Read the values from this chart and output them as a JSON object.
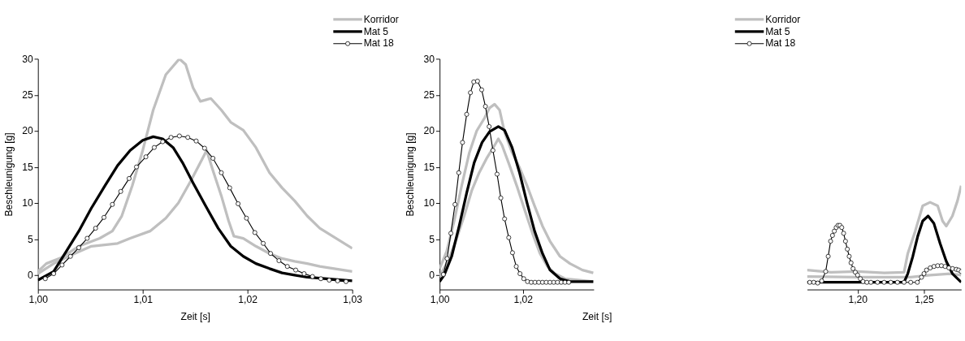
{
  "chart_data": [
    {
      "type": "line",
      "xlabel": "Zeit [s]",
      "ylabel": "Beschleunigung [g]",
      "xlim": [
        1.0,
        1.03
      ],
      "ylim": [
        -2,
        30
      ],
      "xticks": [
        {
          "value": 1.0,
          "label": "1,00"
        },
        {
          "value": 1.01,
          "label": "1,01"
        },
        {
          "value": 1.02,
          "label": "1,02"
        },
        {
          "value": 1.03,
          "label": "1,03"
        }
      ],
      "yticks": [
        0,
        5,
        10,
        15,
        20,
        25,
        30
      ],
      "grid": false,
      "legend": "top right",
      "series": [
        {
          "name": "Korridor",
          "color": "#bfbfbf",
          "x": [
            1.0,
            1.0008,
            1.0022,
            1.0039,
            1.0059,
            1.0071,
            1.008,
            1.009,
            1.01,
            1.011,
            1.0122,
            1.0135,
            1.0141,
            1.0148,
            1.0155,
            1.0165,
            1.0175,
            1.0184,
            1.0196,
            1.0208,
            1.0221,
            1.0233,
            1.0245,
            1.0257,
            1.0269,
            1.03
          ],
          "values": [
            0.5,
            1.6,
            2.4,
            4.0,
            5.1,
            6.1,
            8.2,
            12.4,
            17.3,
            22.9,
            27.8,
            30,
            29.2,
            26,
            24.1,
            24.5,
            22.9,
            21.2,
            20.1,
            17.7,
            14.2,
            12.1,
            10.3,
            8.2,
            6.5,
            3.7
          ]
        },
        {
          "color": "#bfbfbf",
          "x": [
            1.0,
            1.0015,
            1.0035,
            1.0051,
            1.0076,
            1.0088,
            1.0107,
            1.0122,
            1.0134,
            1.0146,
            1.0155,
            1.0161,
            1.0167,
            1.0175,
            1.0182,
            1.0187,
            1.0196,
            1.0208,
            1.0221,
            1.0233,
            1.0245,
            1.0257,
            1.0269,
            1.03
          ],
          "values": [
            0.2,
            1.6,
            3.0,
            4.0,
            4.4,
            5.1,
            6.1,
            7.9,
            10,
            13.1,
            15.6,
            17.3,
            14.5,
            11,
            7.5,
            5.4,
            5.1,
            4.0,
            3.0,
            2.3,
            1.9,
            1.6,
            1.2,
            0.5
          ]
        },
        {
          "name": "Mat 5",
          "color": "#000000",
          "x": [
            1.0,
            1.0015,
            1.0027,
            1.0039,
            1.0051,
            1.0064,
            1.0076,
            1.0088,
            1.01,
            1.011,
            1.0119,
            1.0129,
            1.0138,
            1.0148,
            1.016,
            1.0172,
            1.0184,
            1.0196,
            1.0208,
            1.0221,
            1.0233,
            1.0245,
            1.0257,
            1.03
          ],
          "values": [
            -0.7,
            0.5,
            3.3,
            6.1,
            9.3,
            12.4,
            15.2,
            17.3,
            18.7,
            19.2,
            18.9,
            17.7,
            15.6,
            12.8,
            9.6,
            6.5,
            4.0,
            2.6,
            1.6,
            0.9,
            0.3,
            0,
            -0.3,
            -0.8
          ]
        },
        {
          "name": "Mat 18",
          "color": "#000000",
          "marker": "circle",
          "x": [
            1.0007,
            1.0015,
            1.0023,
            1.0031,
            1.0039,
            1.0047,
            1.0055,
            1.0063,
            1.0071,
            1.0079,
            1.0087,
            1.0094,
            1.0103,
            1.0111,
            1.0119,
            1.0127,
            1.0135,
            1.0143,
            1.0151,
            1.0159,
            1.0167,
            1.0175,
            1.0183,
            1.0191,
            1.0199,
            1.0207,
            1.0215,
            1.0222,
            1.023,
            1.0238,
            1.0246,
            1.0254,
            1.0262,
            1.027,
            1.0278,
            1.0286,
            1.0294
          ],
          "values": [
            -0.5,
            0.2,
            1.4,
            2.6,
            3.8,
            5.1,
            6.5,
            8.0,
            9.8,
            11.6,
            13.4,
            15.0,
            16.4,
            17.7,
            18.5,
            19.1,
            19.3,
            19.1,
            18.6,
            17.6,
            16.2,
            14.2,
            12.1,
            9.9,
            7.9,
            5.9,
            4.4,
            3.0,
            2.0,
            1.2,
            0.7,
            0.2,
            -0.2,
            -0.5,
            -0.7,
            -0.8,
            -0.9
          ]
        }
      ]
    },
    {
      "type": "line",
      "xlabel": "Zeit [s]",
      "ylabel": "Beschleunigung [g]",
      "xlim": [
        1.0,
        1.037
      ],
      "ylim": [
        -2,
        30
      ],
      "xticks": [
        {
          "value": 1.0,
          "label": "1,00"
        },
        {
          "value": 1.02,
          "label": "1,02"
        }
      ],
      "yticks": [
        0,
        5,
        10,
        15,
        20,
        25,
        30
      ],
      "grid": false,
      "legend": "top right",
      "series": [
        {
          "name": "Korridor",
          "color": "#bfbfbf",
          "x": [
            1.0,
            1.0017,
            1.0035,
            1.0053,
            1.0071,
            1.0089,
            1.0108,
            1.012,
            1.0132,
            1.0144,
            1.0156,
            1.0174,
            1.0192,
            1.021,
            1.0228,
            1.0247,
            1.0265,
            1.0289,
            1.0313,
            1.0343,
            1.0369
          ],
          "values": [
            0.9,
            3.3,
            7.5,
            12.4,
            16.9,
            20.0,
            21.8,
            23.2,
            23.7,
            22.9,
            19.8,
            17.0,
            14.9,
            12.4,
            9.6,
            6.8,
            4.7,
            2.6,
            1.6,
            0.7,
            0.3
          ]
        },
        {
          "color": "#bfbfbf",
          "x": [
            1.0,
            1.0023,
            1.0041,
            1.0059,
            1.0077,
            1.0095,
            1.0114,
            1.0132,
            1.0141,
            1.015,
            1.0168,
            1.0187,
            1.0205,
            1.0223,
            1.0241,
            1.0259,
            1.0277,
            1.0301,
            1.0337,
            1.0369
          ],
          "values": [
            -0.2,
            2.3,
            5.1,
            8.2,
            11.7,
            14.2,
            16.3,
            18.0,
            18.9,
            18.0,
            15.2,
            12.1,
            8.9,
            5.8,
            3.0,
            1.2,
            0.2,
            -0.5,
            -0.7,
            -0.9
          ]
        },
        {
          "name": "Mat 5",
          "color": "#000000",
          "x": [
            1.0,
            1.0011,
            1.0029,
            1.0047,
            1.0065,
            1.0083,
            1.0102,
            1.012,
            1.0141,
            1.0156,
            1.0174,
            1.0192,
            1.021,
            1.0228,
            1.0247,
            1.0265,
            1.0289,
            1.0313,
            1.0369
          ],
          "values": [
            -0.9,
            0,
            2.6,
            6.8,
            11.4,
            15.6,
            18.4,
            19.9,
            20.6,
            20.1,
            17.7,
            14.2,
            10.0,
            6.1,
            3.0,
            0.7,
            -0.5,
            -0.9,
            -0.9
          ]
        },
        {
          "name": "Mat 18",
          "color": "#000000",
          "marker": "circle",
          "x": [
            1.0009,
            1.0018,
            1.0027,
            1.0037,
            1.0046,
            1.0055,
            1.0065,
            1.0074,
            1.0082,
            1.0091,
            1.0101,
            1.011,
            1.0119,
            1.0128,
            1.0138,
            1.0147,
            1.0156,
            1.0166,
            1.0175,
            1.0184,
            1.0193,
            1.0202,
            1.0211,
            1.022,
            1.0229,
            1.0238,
            1.0247,
            1.0256,
            1.0265,
            1.0274,
            1.0283,
            1.0292,
            1.0301,
            1.031
          ],
          "values": [
            0.1,
            2.3,
            5.8,
            9.8,
            14.2,
            18.4,
            22.3,
            25.3,
            26.8,
            26.9,
            25.7,
            23.4,
            20.6,
            17.3,
            14.0,
            10.7,
            7.8,
            5.2,
            3.1,
            1.2,
            0.2,
            -0.5,
            -0.9,
            -1.0,
            -1.0,
            -1.0,
            -1.0,
            -1.0,
            -1.0,
            -1.0,
            -1.0,
            -1.0,
            -1.0,
            -1.0
          ]
        }
      ]
    },
    {
      "type": "line",
      "xlim": [
        1.162,
        1.278
      ],
      "ylim": [
        -2,
        30
      ],
      "tick_labels": "x",
      "xticks": [
        {
          "value": 1.2,
          "label": "1,20"
        },
        {
          "value": 1.25,
          "label": "1,25"
        }
      ],
      "grid": false,
      "series": [
        {
          "color": "#bfbfbf",
          "x": [
            1.162,
            1.18,
            1.2,
            1.22,
            1.235,
            1.2378,
            1.2434,
            1.249,
            1.2546,
            1.2603,
            1.264,
            1.2668,
            1.2714,
            1.2752,
            1.278
          ],
          "values": [
            0.7,
            0.4,
            0.5,
            0.3,
            0.4,
            3.0,
            6.1,
            9.6,
            10.1,
            9.6,
            7.5,
            6.8,
            8.2,
            10.3,
            12.4
          ]
        },
        {
          "color": "#bfbfbf",
          "x": [
            1.162,
            1.2,
            1.24,
            1.2546,
            1.2696,
            1.278
          ],
          "values": [
            -0.2,
            -0.3,
            -0.3,
            0,
            0.2,
            0
          ]
        },
        {
          "color": "#000000",
          "x": [
            1.162,
            1.235,
            1.2378,
            1.2416,
            1.2453,
            1.249,
            1.2531,
            1.2574,
            1.2621,
            1.2668,
            1.2714,
            1.278
          ],
          "values": [
            -1,
            -1,
            0.2,
            2.6,
            5.4,
            7.5,
            8.2,
            7.2,
            4.4,
            1.9,
            0.2,
            -1.0
          ]
        },
        {
          "color": "#000000",
          "marker": "circle",
          "x": [
            1.164,
            1.167,
            1.17,
            1.173,
            1.176,
            1.1779,
            1.1797,
            1.1811,
            1.1825,
            1.1839,
            1.1853,
            1.1867,
            1.1881,
            1.1895,
            1.1909,
            1.1923,
            1.1937,
            1.1951,
            1.1966,
            1.1983,
            1.2,
            1.2021,
            1.2041,
            1.207,
            1.21,
            1.215,
            1.22,
            1.225,
            1.23,
            1.235,
            1.24,
            1.245,
            1.2481,
            1.25,
            1.2519,
            1.2547,
            1.2575,
            1.2603,
            1.2631,
            1.2659,
            1.2687,
            1.2715,
            1.2743,
            1.2761,
            1.278
          ],
          "values": [
            -1.0,
            -1.0,
            -1.1,
            -0.8,
            0.5,
            2.6,
            4.7,
            5.5,
            6.1,
            6.6,
            6.9,
            6.9,
            6.6,
            5.8,
            4.7,
            3.6,
            2.6,
            1.7,
            0.9,
            0.4,
            0,
            -0.5,
            -0.9,
            -1.0,
            -1.0,
            -1.0,
            -1.0,
            -1.0,
            -1.0,
            -1.0,
            -1.0,
            -1.0,
            -0.3,
            0.2,
            0.7,
            1.0,
            1.2,
            1.3,
            1.3,
            1.2,
            1.0,
            0.9,
            0.8,
            0.7,
            0.5
          ]
        }
      ]
    }
  ]
}
